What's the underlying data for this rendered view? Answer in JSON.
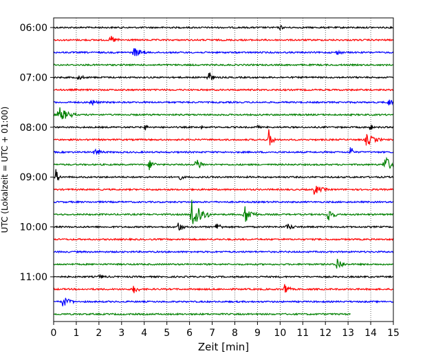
{
  "chart_data": {
    "type": "line",
    "title": "",
    "xlabel": "Zeit  [min]",
    "ylabel": "UTC (Lokalzeit = UTC + 01:00)",
    "xlim": [
      0,
      15
    ],
    "x_ticks": [
      "0",
      "1",
      "2",
      "3",
      "4",
      "5",
      "6",
      "7",
      "8",
      "9",
      "10",
      "11",
      "12",
      "13",
      "14",
      "15"
    ],
    "y_tick_labels": [
      "06:00",
      "07:00",
      "08:00",
      "09:00",
      "10:00",
      "11:00"
    ],
    "grid": {
      "vertical": true,
      "style": "dotted"
    },
    "trace_colors": [
      "#000000",
      "#ff0000",
      "#0000ff",
      "#008000"
    ],
    "traces": [
      {
        "time": "06:00",
        "color": "#000000",
        "end": 15,
        "events": [
          [
            10,
            0.6,
            0.15
          ]
        ]
      },
      {
        "time": "06:15",
        "color": "#ff0000",
        "end": 15,
        "events": [
          [
            2.5,
            1.0,
            0.4
          ]
        ]
      },
      {
        "time": "06:30",
        "color": "#0000ff",
        "end": 15,
        "events": [
          [
            3.5,
            1.2,
            0.6
          ],
          [
            12.5,
            0.5,
            0.3
          ]
        ]
      },
      {
        "time": "06:45",
        "color": "#008000",
        "end": 15,
        "events": []
      },
      {
        "time": "07:00",
        "color": "#000000",
        "end": 15,
        "events": [
          [
            1.1,
            0.6,
            0.3
          ],
          [
            6.8,
            1.8,
            0.3
          ]
        ]
      },
      {
        "time": "07:15",
        "color": "#ff0000",
        "end": 15,
        "events": []
      },
      {
        "time": "07:30",
        "color": "#0000ff",
        "end": 15,
        "events": [
          [
            1.6,
            0.8,
            0.4
          ],
          [
            14.8,
            0.8,
            0.3
          ]
        ]
      },
      {
        "time": "07:45",
        "color": "#008000",
        "end": 15,
        "events": [
          [
            0.2,
            1.8,
            0.8
          ]
        ]
      },
      {
        "time": "08:00",
        "color": "#000000",
        "end": 15,
        "events": [
          [
            4,
            0.8,
            0.2
          ],
          [
            6.5,
            0.5,
            0.1
          ],
          [
            9,
            0.5,
            0.1
          ],
          [
            14,
            0.8,
            0.1
          ]
        ]
      },
      {
        "time": "08:15",
        "color": "#ff0000",
        "end": 15,
        "events": [
          [
            9.5,
            2.0,
            0.3
          ],
          [
            13.8,
            1.2,
            0.7
          ]
        ]
      },
      {
        "time": "08:30",
        "color": "#0000ff",
        "end": 15,
        "events": [
          [
            1.8,
            1.0,
            0.4
          ],
          [
            13.1,
            1.5,
            0.2
          ]
        ]
      },
      {
        "time": "08:45",
        "color": "#008000",
        "end": 15,
        "events": [
          [
            4.2,
            1.2,
            0.4
          ],
          [
            6.3,
            1.5,
            0.4
          ],
          [
            14.6,
            2.0,
            0.6
          ]
        ]
      },
      {
        "time": "09:00",
        "color": "#000000",
        "end": 15,
        "events": [
          [
            0.1,
            1.5,
            0.2
          ],
          [
            5.5,
            0.8,
            0.3
          ]
        ]
      },
      {
        "time": "09:15",
        "color": "#ff0000",
        "end": 15,
        "events": [
          [
            11.5,
            1.0,
            0.6
          ]
        ]
      },
      {
        "time": "09:30",
        "color": "#0000ff",
        "end": 15,
        "events": []
      },
      {
        "time": "09:45",
        "color": "#008000",
        "end": 15,
        "events": [
          [
            6.1,
            4.0,
            0.8
          ],
          [
            8.4,
            2.2,
            0.6
          ],
          [
            12.1,
            1.8,
            0.4
          ]
        ]
      },
      {
        "time": "10:00",
        "color": "#000000",
        "end": 15,
        "events": [
          [
            5.5,
            1.2,
            0.3
          ],
          [
            7.2,
            1.0,
            0.3
          ],
          [
            10.3,
            0.8,
            0.4
          ]
        ]
      },
      {
        "time": "10:15",
        "color": "#ff0000",
        "end": 15,
        "events": []
      },
      {
        "time": "10:30",
        "color": "#0000ff",
        "end": 15,
        "events": []
      },
      {
        "time": "10:45",
        "color": "#008000",
        "end": 15,
        "events": [
          [
            12.5,
            1.5,
            0.4
          ]
        ]
      },
      {
        "time": "11:00",
        "color": "#000000",
        "end": 15,
        "events": [
          [
            2,
            0.5,
            0.3
          ]
        ]
      },
      {
        "time": "11:15",
        "color": "#ff0000",
        "end": 15,
        "events": [
          [
            3.5,
            1.2,
            0.3
          ],
          [
            10.2,
            1.4,
            0.3
          ]
        ]
      },
      {
        "time": "11:30",
        "color": "#0000ff",
        "end": 15,
        "events": [
          [
            0.4,
            1.2,
            0.5
          ]
        ]
      },
      {
        "time": "11:45",
        "color": "#008000",
        "end": 13.1,
        "events": []
      }
    ]
  }
}
